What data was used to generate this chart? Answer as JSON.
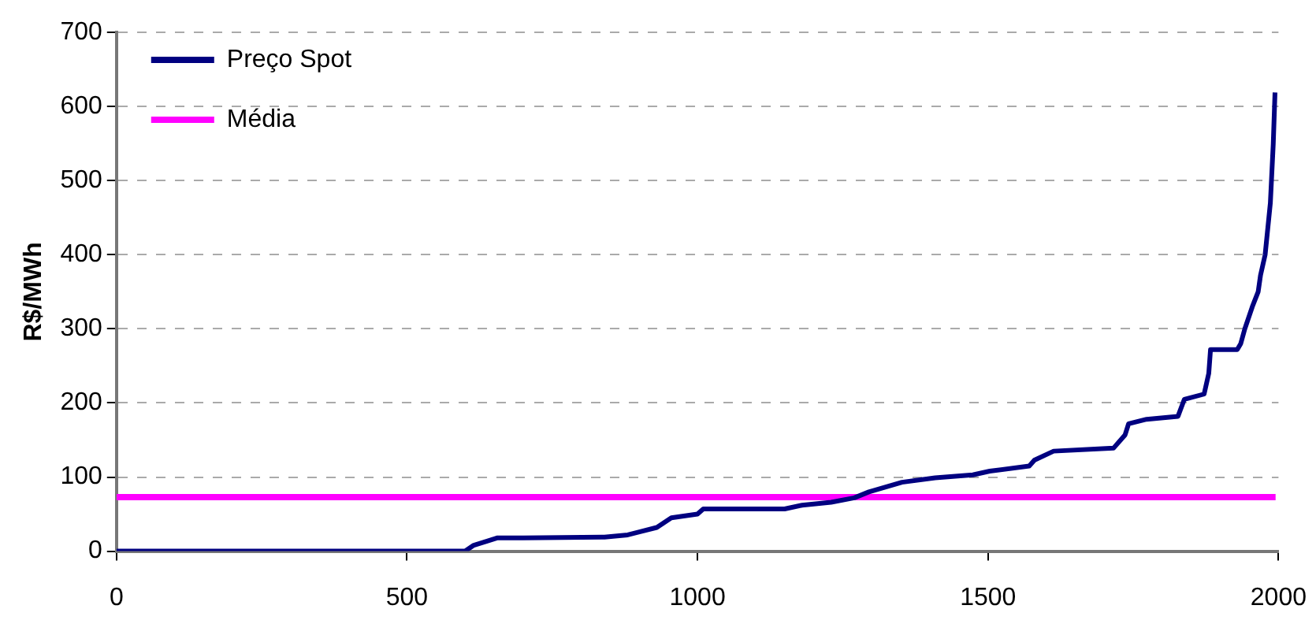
{
  "chart_data": {
    "type": "line",
    "ylabel": "R$/MWh",
    "xlim": [
      0,
      2000
    ],
    "xticks": [
      0,
      500,
      1000,
      1500,
      2000
    ],
    "ylim": [
      0,
      700
    ],
    "yticks": [
      0,
      100,
      200,
      300,
      400,
      500,
      600,
      700
    ],
    "grid": "y",
    "legend": "top left",
    "marker": "none",
    "line_style": "solid",
    "series": [
      {
        "name": "Preço Spot",
        "color": "#000080",
        "x": [
          0,
          600,
          615,
          640,
          656,
          700,
          840,
          880,
          900,
          930,
          955,
          1000,
          1010,
          1150,
          1180,
          1230,
          1270,
          1295,
          1352,
          1409,
          1474,
          1503,
          1571,
          1580,
          1613,
          1716,
          1736,
          1742,
          1773,
          1827,
          1838,
          1872,
          1880,
          1883,
          1929,
          1935,
          1942,
          1955,
          1965,
          1969,
          1977,
          1986,
          1991,
          1994
        ],
        "values": [
          0,
          0,
          8,
          14,
          18,
          18,
          19,
          22,
          26,
          32,
          45,
          50,
          57,
          57,
          62,
          66,
          72,
          80,
          93,
          99,
          103,
          108,
          115,
          123,
          135,
          139,
          157,
          172,
          178,
          182,
          205,
          212,
          240,
          272,
          272,
          280,
          300,
          330,
          350,
          372,
          400,
          470,
          550,
          619
        ]
      },
      {
        "name": "Média",
        "color": "#ff00ff",
        "x": [
          0,
          1995
        ],
        "values": [
          73,
          73
        ]
      }
    ]
  }
}
